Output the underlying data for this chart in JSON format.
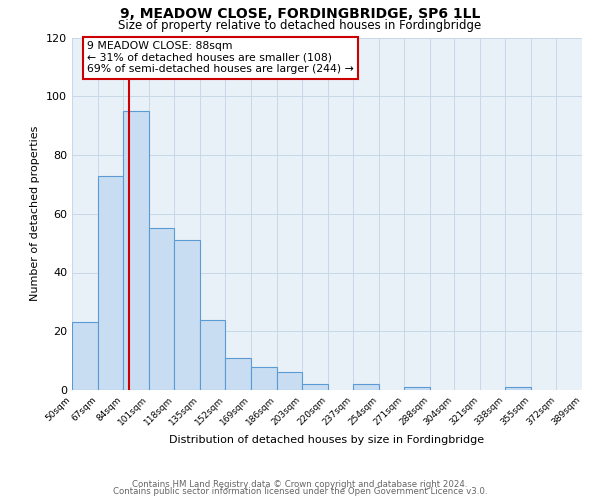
{
  "title1": "9, MEADOW CLOSE, FORDINGBRIDGE, SP6 1LL",
  "title2": "Size of property relative to detached houses in Fordingbridge",
  "xlabel": "Distribution of detached houses by size in Fordingbridge",
  "ylabel": "Number of detached properties",
  "bin_edges": [
    50,
    67,
    84,
    101,
    118,
    135,
    152,
    169,
    186,
    203,
    220,
    237,
    254,
    271,
    288,
    304,
    321,
    338,
    355,
    372,
    389
  ],
  "bar_heights": [
    23,
    73,
    95,
    55,
    51,
    24,
    11,
    8,
    6,
    2,
    0,
    2,
    0,
    1,
    0,
    0,
    0,
    1,
    0,
    0
  ],
  "bar_color": "#c9ddf2",
  "bar_edgecolor": "#5b9bd5",
  "property_line_x": 88,
  "property_line_color": "#cc0000",
  "annotation_text": "9 MEADOW CLOSE: 88sqm\n← 31% of detached houses are smaller (108)\n69% of semi-detached houses are larger (244) →",
  "annotation_box_edgecolor": "#cc0000",
  "ylim": [
    0,
    120
  ],
  "yticks": [
    0,
    20,
    40,
    60,
    80,
    100,
    120
  ],
  "footer1": "Contains HM Land Registry data © Crown copyright and database right 2024.",
  "footer2": "Contains public sector information licensed under the Open Government Licence v3.0.",
  "background_color": "#ffffff",
  "grid_color": "#c8d8e8",
  "plot_bg_color": "#e8f0f8"
}
